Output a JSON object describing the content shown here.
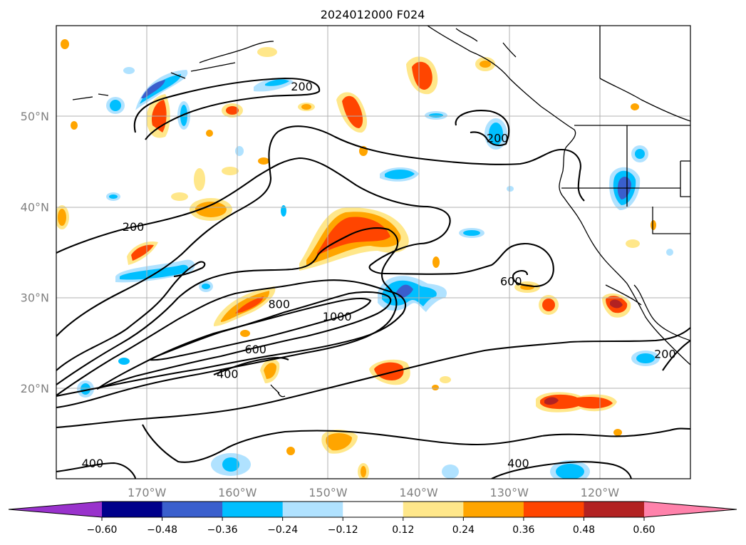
{
  "title": "2024012000 F024",
  "map": {
    "lon_range": [
      -180,
      -110
    ],
    "lat_range": [
      10,
      60
    ],
    "graticule": "on",
    "lat_ticks": [
      {
        "value": 20,
        "label": "20°N"
      },
      {
        "value": 30,
        "label": "30°N"
      },
      {
        "value": 40,
        "label": "40°N"
      },
      {
        "value": 50,
        "label": "50°N"
      }
    ],
    "lon_ticks": [
      {
        "value": -170,
        "label": "170°W"
      },
      {
        "value": -160,
        "label": "160°W"
      },
      {
        "value": -150,
        "label": "150°W"
      },
      {
        "value": -140,
        "label": "140°W"
      },
      {
        "value": -130,
        "label": "130°W"
      },
      {
        "value": -120,
        "label": "120°W"
      }
    ],
    "contour_labels": [
      {
        "text": "200",
        "lon": -152.9,
        "lat": 53.0
      },
      {
        "text": "200",
        "lon": -131.3,
        "lat": 47.3
      },
      {
        "text": "200",
        "lon": -171.5,
        "lat": 37.5
      },
      {
        "text": "200",
        "lon": -112.8,
        "lat": 23.5
      },
      {
        "text": "600",
        "lon": -129.8,
        "lat": 31.5
      },
      {
        "text": "800",
        "lon": -155.4,
        "lat": 29.0
      },
      {
        "text": "1000",
        "lon": -149.0,
        "lat": 27.6
      },
      {
        "text": "600",
        "lon": -158.0,
        "lat": 24.0
      },
      {
        "text": "400",
        "lon": -161.1,
        "lat": 21.3
      },
      {
        "text": "400",
        "lon": -176.0,
        "lat": 11.4
      },
      {
        "text": "400",
        "lon": -129.0,
        "lat": 11.4
      }
    ]
  },
  "colorbar": {
    "ticks": [
      "−0.60",
      "−0.48",
      "−0.36",
      "−0.24",
      "−0.12",
      "0.12",
      "0.24",
      "0.36",
      "0.48",
      "0.60"
    ],
    "colors": [
      "#9932cc",
      "#00008b",
      "#3a5fcd",
      "#00bfff",
      "#b0e2ff",
      "#ffffff",
      "#ffe78a",
      "#ffa500",
      "#ff4500",
      "#b22222",
      "#ff82ab"
    ]
  }
}
